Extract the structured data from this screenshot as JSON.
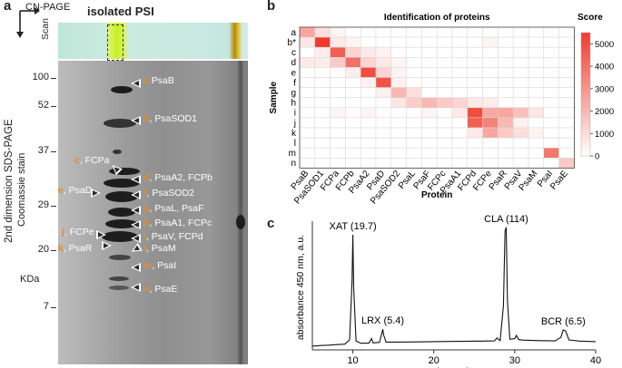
{
  "panel_a": {
    "label": "a",
    "top_label": "CN-PAGE",
    "isolated_label": "isolated PSI",
    "scan_label": "Scan",
    "y_title_line1": "2nd dimension  SDS-PAGE",
    "y_title_line2": "Coomassie stain",
    "unit_label": "KDa",
    "markers": [
      "100",
      "52",
      "37",
      "29",
      "20",
      "7"
    ],
    "bands": [
      {
        "letter": "a",
        "name": "PsaB"
      },
      {
        "letter": "b",
        "name": ", PsaSOD1"
      },
      {
        "letter": "c",
        "name": ", FCPa"
      },
      {
        "letter": "d",
        "name": ", PsaA2, FCPb"
      },
      {
        "letter": "e",
        "name": ", PsaD"
      },
      {
        "letter": "f",
        "name": ", PsaSOD2"
      },
      {
        "letter": "g",
        "name": ", PsaL, PsaF"
      },
      {
        "letter": "h",
        "name": ", PsaA1, FCPc"
      },
      {
        "letter": "i",
        "name": ", PsaV, FCPd"
      },
      {
        "letter": "j",
        "name": ", FCPe"
      },
      {
        "letter": "k",
        "name": ", PsaR"
      },
      {
        "letter": "l",
        "name": ", PsaM"
      },
      {
        "letter": "m",
        "name": ", PsaI"
      },
      {
        "letter": "n",
        "name": ", PsaE"
      }
    ]
  },
  "panel_b": {
    "label": "b",
    "title": "Identification of proteins",
    "colorbar_title": "Score",
    "colorbar_ticks": [
      "5000",
      "4000",
      "3000",
      "2000",
      "1000",
      "0"
    ],
    "colors": {
      "low": "#ffffff",
      "high": "#ef3b2c"
    }
  },
  "panel_c": {
    "label": "c",
    "peaks": [
      {
        "label": "XAT (19.7)"
      },
      {
        "label": "LRX (5.4)"
      },
      {
        "label": "CLA (114)"
      },
      {
        "label": "BCR (6.5)"
      }
    ]
  },
  "chart_data": [
    {
      "type": "heatmap",
      "title": "Identification of proteins",
      "xlabel": "Protein",
      "ylabel": "Sample",
      "x": [
        "PsaB",
        "PsaSOD1",
        "FCPa",
        "FCPb",
        "PsaA2",
        "PsaD",
        "PsaSOD2",
        "PsaL",
        "PsaF",
        "FCPc",
        "PsaA1",
        "FCPd",
        "FCPe",
        "PsaR",
        "PsaV",
        "PsaM",
        "PsaI",
        "PsaE"
      ],
      "y": [
        "a",
        "b*",
        "c",
        "d",
        "e",
        "f",
        "g",
        "h",
        "i",
        "j",
        "k",
        "l",
        "m",
        "n"
      ],
      "colorbar_label": "Score",
      "colorbar_range": [
        0,
        5500
      ],
      "values": [
        [
          2500,
          900,
          300,
          0,
          0,
          0,
          0,
          0,
          0,
          0,
          0,
          0,
          0,
          0,
          0,
          0,
          0,
          0
        ],
        [
          700,
          5500,
          600,
          300,
          0,
          0,
          0,
          0,
          0,
          0,
          0,
          0,
          300,
          0,
          0,
          0,
          0,
          0
        ],
        [
          0,
          500,
          4500,
          1200,
          600,
          400,
          0,
          0,
          0,
          0,
          0,
          0,
          0,
          0,
          0,
          0,
          0,
          0
        ],
        [
          600,
          500,
          1500,
          4000,
          1200,
          600,
          300,
          0,
          0,
          0,
          0,
          0,
          0,
          0,
          0,
          0,
          0,
          0
        ],
        [
          0,
          0,
          0,
          500,
          5000,
          1200,
          300,
          0,
          0,
          0,
          0,
          0,
          0,
          0,
          0,
          0,
          0,
          0
        ],
        [
          0,
          0,
          0,
          0,
          400,
          4800,
          400,
          0,
          0,
          0,
          0,
          0,
          0,
          0,
          0,
          0,
          0,
          0
        ],
        [
          0,
          0,
          0,
          0,
          0,
          400,
          2000,
          900,
          0,
          0,
          0,
          0,
          0,
          0,
          0,
          0,
          0,
          0
        ],
        [
          0,
          0,
          0,
          0,
          0,
          0,
          700,
          1400,
          2000,
          1500,
          1200,
          600,
          500,
          0,
          0,
          0,
          0,
          0
        ],
        [
          0,
          0,
          300,
          0,
          300,
          0,
          0,
          0,
          300,
          0,
          600,
          5000,
          2400,
          2500,
          1800,
          700,
          0,
          0
        ],
        [
          0,
          0,
          0,
          0,
          0,
          0,
          0,
          0,
          0,
          0,
          0,
          4500,
          3500,
          2000,
          400,
          0,
          0,
          0
        ],
        [
          0,
          0,
          0,
          0,
          0,
          0,
          0,
          0,
          0,
          0,
          0,
          600,
          2500,
          1500,
          900,
          300,
          0,
          0
        ],
        [
          0,
          0,
          0,
          0,
          0,
          0,
          0,
          0,
          0,
          0,
          0,
          0,
          0,
          0,
          0,
          0,
          0,
          0
        ],
        [
          0,
          0,
          0,
          0,
          0,
          0,
          0,
          0,
          0,
          0,
          0,
          0,
          0,
          0,
          0,
          0,
          3800,
          0
        ],
        [
          0,
          0,
          0,
          0,
          0,
          0,
          0,
          0,
          0,
          0,
          0,
          0,
          0,
          0,
          0,
          0,
          0,
          1500
        ]
      ]
    },
    {
      "type": "line",
      "xlabel": "time, min",
      "ylabel": "absorbance 450 nm, a.u.",
      "xlim": [
        5,
        40
      ],
      "xticks": [
        "10",
        "20",
        "30",
        "40"
      ],
      "ylim": [
        0,
        1
      ],
      "x": [
        5,
        6,
        7,
        8,
        9,
        9.6,
        9.9,
        10.0,
        10.1,
        10.4,
        11,
        12,
        12.3,
        12.5,
        12.8,
        13.3,
        13.6,
        13.7,
        13.8,
        14.1,
        15,
        17,
        20,
        23,
        26,
        27.5,
        27.8,
        28.2,
        28.6,
        28.8,
        28.95,
        29.1,
        29.4,
        30,
        30.2,
        30.5,
        31,
        33,
        35,
        35.7,
        36.0,
        36.3,
        36.7,
        38,
        40
      ],
      "series": [
        {
          "values": [
            0.03,
            0.035,
            0.038,
            0.042,
            0.046,
            0.08,
            0.55,
            0.92,
            0.5,
            0.07,
            0.053,
            0.055,
            0.09,
            0.056,
            0.057,
            0.06,
            0.14,
            0.165,
            0.12,
            0.062,
            0.062,
            0.063,
            0.066,
            0.068,
            0.07,
            0.072,
            0.095,
            0.074,
            0.35,
            0.95,
            0.98,
            0.4,
            0.085,
            0.09,
            0.115,
            0.082,
            0.078,
            0.074,
            0.072,
            0.1,
            0.16,
            0.15,
            0.08,
            0.07,
            0.066
          ]
        }
      ]
    }
  ]
}
